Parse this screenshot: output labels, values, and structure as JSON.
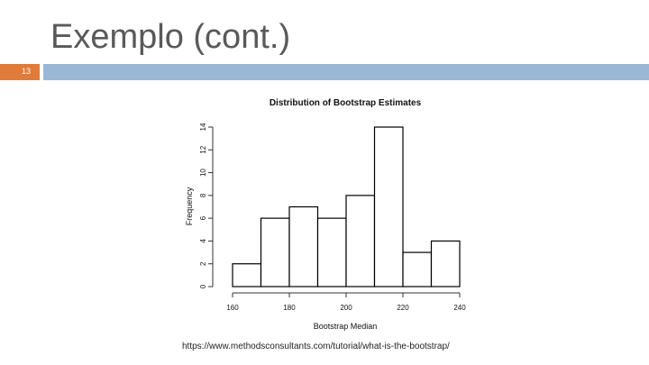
{
  "slide": {
    "title": "Exemplo (cont.)",
    "page_number": "13",
    "source": "https://www.methodsconsultants.com/tutorial/what-is-the-bootstrap/"
  },
  "colors": {
    "accent_orange": "#e07b39",
    "accent_blue": "#9ab8d6",
    "bar_fill": "#ffffff",
    "bar_stroke": "#000000"
  },
  "chart_data": {
    "type": "bar",
    "title": "Distribution of Bootstrap Estimates",
    "xlabel": "Bootstrap Median",
    "ylabel": "Frequency",
    "bins": [
      {
        "start": 160,
        "end": 170,
        "count": 2
      },
      {
        "start": 170,
        "end": 180,
        "count": 6
      },
      {
        "start": 180,
        "end": 190,
        "count": 7
      },
      {
        "start": 190,
        "end": 200,
        "count": 6
      },
      {
        "start": 200,
        "end": 210,
        "count": 8
      },
      {
        "start": 210,
        "end": 220,
        "count": 14
      },
      {
        "start": 220,
        "end": 230,
        "count": 3
      },
      {
        "start": 230,
        "end": 240,
        "count": 4
      }
    ],
    "xlim": [
      160,
      240
    ],
    "ylim": [
      0,
      14
    ],
    "xticks": [
      160,
      180,
      200,
      220,
      240
    ],
    "yticks": [
      0,
      2,
      4,
      6,
      8,
      10,
      12,
      14
    ],
    "grid": false,
    "legend": "none"
  }
}
